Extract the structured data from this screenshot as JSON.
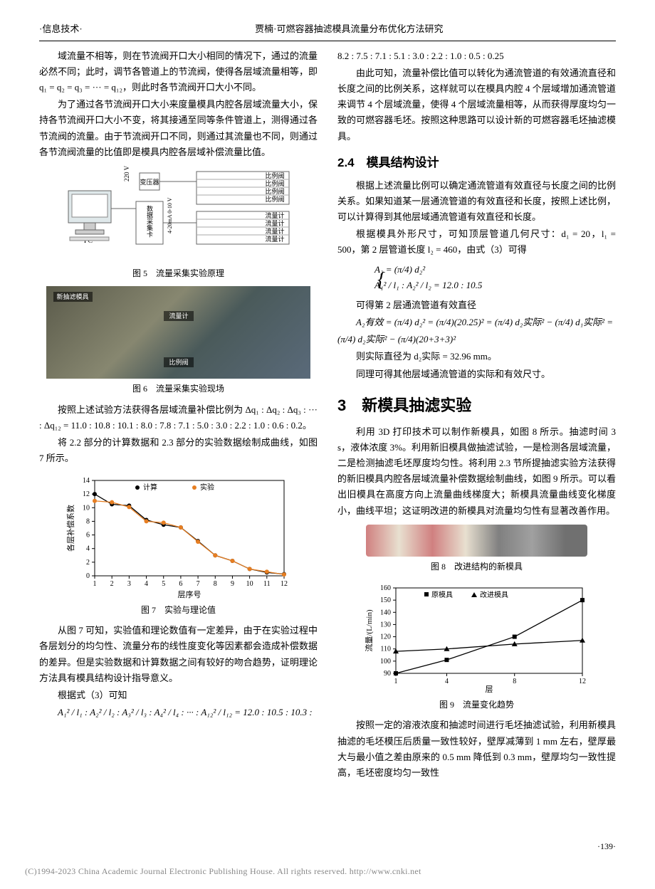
{
  "header": {
    "left": "·信息技术·",
    "center": "贾楠·可燃容器抽滤模具流量分布优化方法研究"
  },
  "left_col": {
    "p1": "域流量不相等，则在节流阀开口大小相同的情况下，通过的流量必然不同；此时，调节各管道上的节流阀，使得各层域流量相等，即 q₁ = q₂ = q₃ = ··· = q₁₂，则此时各节流阀开口大小不同。",
    "p2": "为了通过各节流阀开口大小来度量模具内腔各层域流量大小，保持各节流阀开口大小不变，将其接通至同等条件管道上，测得通过各节流阀的流量。由于节流阀开口不同，则通过其流量也不同，则通过各节流阀流量的比值即是模具内腔各层域补偿流量比值。",
    "fig5_caption": "图 5　流量采集实验原理",
    "fig5_labels": {
      "pc": "PC",
      "voltage": "220 V",
      "transformer": "变压器",
      "daq": "数据采集卡",
      "signal": "4-20mA 0-10 V",
      "valve": "比例阀",
      "flowmeter": "流量计"
    },
    "fig6_caption": "图 6　流量采集实验现场",
    "fig6_labels": [
      "新抽滤模具",
      "流量计",
      "比例阀"
    ],
    "p3": "按照上述试验方法获得各层域流量补偿比例为 Δq₁ : Δq₂ : Δq₃ : ··· : Δq₁₂ = 11.0 : 10.8 : 10.1 : 8.0 : 7.8 : 7.1 : 5.0 : 3.0 : 2.2 : 1.0 : 0.6 : 0.2。",
    "p4": "将 2.2 部分的计算数据和 2.3 部分的实验数据绘制成曲线，如图 7 所示。",
    "fig7": {
      "caption": "图 7　实验与理论值",
      "xlabel": "层序号",
      "ylabel": "各层补偿系数",
      "legend": [
        "计算",
        "实验"
      ],
      "x": [
        1,
        2,
        3,
        4,
        5,
        6,
        7,
        8,
        9,
        10,
        11,
        12
      ],
      "calc": [
        12.0,
        10.5,
        10.3,
        8.2,
        7.5,
        7.1,
        5.1,
        3.0,
        2.2,
        1.0,
        0.5,
        0.25
      ],
      "exp": [
        11.0,
        10.8,
        10.1,
        8.0,
        7.8,
        7.1,
        5.0,
        3.0,
        2.2,
        1.0,
        0.6,
        0.2
      ],
      "ylim": [
        0,
        14
      ],
      "ytick_step": 2,
      "calc_color": "#000000",
      "exp_color": "#e67e22",
      "grid_color": "#e0e0e0",
      "axis_color": "#000000"
    },
    "p5": "从图 7 可知，实验值和理论数值有一定差异，由于在实验过程中各层划分的均匀性、流量分布的线性度变化等因素都会造成补偿数据的差异。但是实验数据和计算数据之间有较好的吻合趋势，证明理论方法具有模具结构设计指导意义。",
    "p6": "根据式（3）可知",
    "eq_ratio": "A₁² / l₁ : A₂² / l₂ : A₃² / l₃ : A₄² / l₄ : ··· : A₁₂² / l₁₂ = 12.0 : 10.5 : 10.3 :"
  },
  "right_col": {
    "p0": "8.2 : 7.5 : 7.1 : 5.1 : 3.0 : 2.2 : 1.0 : 0.5 : 0.25",
    "p1": "由此可知，流量补偿比值可以转化为通流管道的有效通流直径和长度之间的比例关系，这样就可以在模具内腔 4 个层域增加通流管道来调节 4 个层域流量，使得 4 个层域流量相等，从而获得厚度均匀一致的可燃容器毛坯。按照这种思路可以设计新的可燃容器毛坯抽滤模具。",
    "h24": "2.4　模具结构设计",
    "p2": "根据上述流量比例可以确定通流管道有效直径与长度之间的比例关系。如果知道某一层通流管道的有效直径和长度，按照上述比例，可以计算得到其他层域通流管道有效直径和长度。",
    "p3": "根据模具外形尺寸，可知顶层管道几何尺寸：d₁ = 20，l₁ = 500，第 2 层管道长度 l₂ = 460，由式（3）可得",
    "eq1_a": "A₂ = (π/4) d₂²",
    "eq1_b": "A₁² / l₁ : A₂² / l₂ = 12.0 : 10.5",
    "p4": "可得第 2 层通流管道有效直径",
    "eq2": "A₂有效 = (π/4) d₂² = (π/4)(20.25)² = (π/4) d₂实际² − (π/4) d₁实际² =",
    "eq2b": "(π/4) d₂实际² − (π/4)(20+3+3)²",
    "p5": "则实际直径为 d₂实际 = 32.96 mm。",
    "p6": "同理可得其他层域通流管道的实际和有效尺寸。",
    "h3": "3　新模具抽滤实验",
    "p7": "利用 3D 打印技术可以制作新模具，如图 8 所示。抽滤时间 3 s，液体浓度 3%。利用新旧模具做抽滤试验，一是检测各层域流量，二是检测抽滤毛坯厚度均匀性。将利用 2.3 节所提抽滤实验方法获得的新旧模具内腔各层域流量补偿数据绘制曲线，如图 9 所示。可以看出旧模具在高度方向上流量曲线梯度大；新模具流量曲线变化梯度小，曲线平坦；这证明改进的新模具对流量均匀性有显著改善作用。",
    "fig8_caption": "图 8　改进结构的新模具",
    "fig9": {
      "caption": "图 9　流量变化趋势",
      "xlabel": "层",
      "ylabel": "流量/(L/min)",
      "legend": [
        "原模具",
        "改进模具"
      ],
      "x": [
        1,
        4,
        8,
        12
      ],
      "old": [
        90,
        101,
        120,
        150
      ],
      "new": [
        108,
        110,
        114,
        117
      ],
      "ylim": [
        90,
        160
      ],
      "ytick_step": 10,
      "old_color": "#000000",
      "old_marker": "square",
      "new_color": "#000000",
      "new_marker": "triangle",
      "axis_color": "#000000"
    },
    "p8": "按照一定的溶液浓度和抽滤时间进行毛坯抽滤试验，利用新模具抽滤的毛坯模压后质量一致性较好，壁厚减薄到 1 mm 左右，壁厚最大与最小值之差由原来的 0.5 mm 降低到 0.3 mm，壁厚均匀一致性提高，毛坯密度均匀一致性"
  },
  "footer": {
    "page_num": "·139·",
    "copyright": "(C)1994-2023 China Academic Journal Electronic Publishing House. All rights reserved.    http://www.cnki.net"
  }
}
